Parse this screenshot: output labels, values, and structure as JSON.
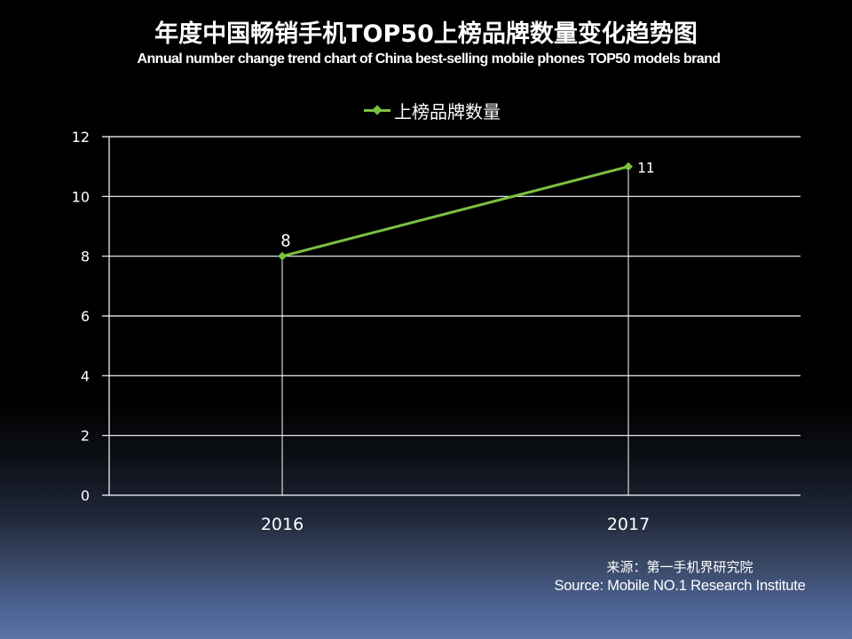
{
  "header": {
    "title_cn": "年度中国畅销手机TOP50上榜品牌数量变化趋势图",
    "title_en": "Annual number change trend chart of China best-selling mobile phones TOP50 models brand"
  },
  "legend": {
    "label": "上榜品牌数量",
    "color": "#7ac143"
  },
  "axis": {
    "y_ticks": [
      "0",
      "2",
      "4",
      "6",
      "8",
      "10",
      "12"
    ],
    "x_ticks": [
      "2016",
      "2017"
    ]
  },
  "data_labels": [
    "8",
    "11"
  ],
  "source": {
    "cn": "来源：第一手机界研究院",
    "en": "Source: Mobile NO.1 Research Institute"
  },
  "chart_data": {
    "type": "line",
    "title": "年度中国畅销手机TOP50上榜品牌数量变化趋势图",
    "subtitle": "Annual number change trend chart of China best-selling mobile phones TOP50 models brand",
    "categories": [
      "2016",
      "2017"
    ],
    "series": [
      {
        "name": "上榜品牌数量",
        "values": [
          8,
          11
        ],
        "color": "#7ac143",
        "marker": "diamond"
      }
    ],
    "xlabel": "",
    "ylabel": "",
    "ylim": [
      0,
      12
    ],
    "yticks": [
      0,
      2,
      4,
      6,
      8,
      10,
      12
    ],
    "grid": {
      "horizontal": true,
      "vertical_at_categories": true
    },
    "legend_position": "top",
    "data_labels_shown": true,
    "source": "来源：第一手机界研究院 / Source: Mobile NO.1 Research Institute"
  }
}
